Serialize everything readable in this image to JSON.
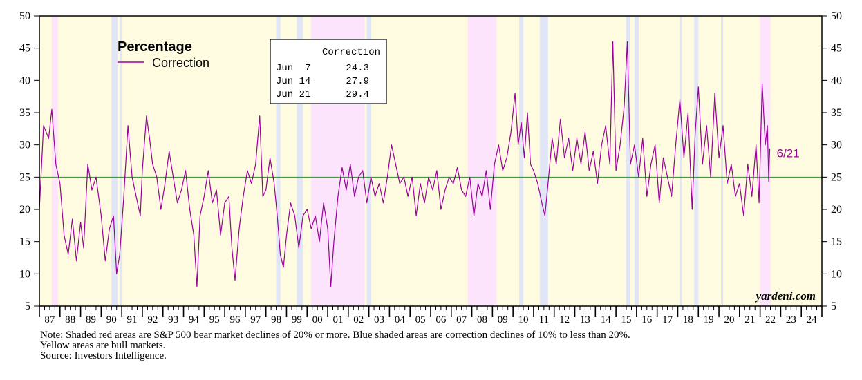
{
  "chart_data": {
    "type": "line",
    "legend": {
      "title": "Percentage",
      "series_label": "Correction",
      "placement": "top-left"
    },
    "series": [
      {
        "name": "Correction",
        "color": "#9a009a",
        "points": [
          [
            1987.0,
            20.0
          ],
          [
            1987.2,
            33.0
          ],
          [
            1987.45,
            31.0
          ],
          [
            1987.6,
            35.5
          ],
          [
            1987.8,
            27.0
          ],
          [
            1988.0,
            24.0
          ],
          [
            1988.2,
            16.0
          ],
          [
            1988.4,
            13.0
          ],
          [
            1988.6,
            18.5
          ],
          [
            1988.8,
            12.0
          ],
          [
            1989.0,
            18.0
          ],
          [
            1989.15,
            14.0
          ],
          [
            1989.35,
            27.0
          ],
          [
            1989.55,
            23.0
          ],
          [
            1989.75,
            25.0
          ],
          [
            1990.0,
            19.0
          ],
          [
            1990.2,
            12.0
          ],
          [
            1990.4,
            17.0
          ],
          [
            1990.6,
            19.0
          ],
          [
            1990.75,
            10.0
          ],
          [
            1990.9,
            13.0
          ],
          [
            1991.1,
            22.0
          ],
          [
            1991.3,
            33.0
          ],
          [
            1991.5,
            25.0
          ],
          [
            1991.7,
            22.0
          ],
          [
            1991.9,
            19.0
          ],
          [
            1992.0,
            26.0
          ],
          [
            1992.2,
            34.5
          ],
          [
            1992.35,
            31.0
          ],
          [
            1992.5,
            27.0
          ],
          [
            1992.7,
            25.0
          ],
          [
            1992.9,
            20.0
          ],
          [
            1993.1,
            24.0
          ],
          [
            1993.3,
            29.0
          ],
          [
            1993.5,
            25.0
          ],
          [
            1993.7,
            21.0
          ],
          [
            1993.9,
            23.0
          ],
          [
            1994.1,
            26.0
          ],
          [
            1994.3,
            20.0
          ],
          [
            1994.5,
            16.0
          ],
          [
            1994.65,
            8.0
          ],
          [
            1994.8,
            19.0
          ],
          [
            1995.0,
            22.0
          ],
          [
            1995.2,
            26.0
          ],
          [
            1995.4,
            21.0
          ],
          [
            1995.6,
            23.0
          ],
          [
            1995.8,
            16.0
          ],
          [
            1996.0,
            21.0
          ],
          [
            1996.2,
            22.0
          ],
          [
            1996.35,
            14.0
          ],
          [
            1996.5,
            9.0
          ],
          [
            1996.7,
            17.0
          ],
          [
            1996.9,
            22.0
          ],
          [
            1997.1,
            26.0
          ],
          [
            1997.3,
            24.0
          ],
          [
            1997.5,
            27.0
          ],
          [
            1997.7,
            34.5
          ],
          [
            1997.85,
            22.0
          ],
          [
            1998.0,
            23.0
          ],
          [
            1998.2,
            28.0
          ],
          [
            1998.4,
            24.0
          ],
          [
            1998.55,
            19.0
          ],
          [
            1998.7,
            13.0
          ],
          [
            1998.85,
            11.0
          ],
          [
            1999.0,
            16.0
          ],
          [
            1999.2,
            21.0
          ],
          [
            1999.4,
            19.0
          ],
          [
            1999.6,
            14.0
          ],
          [
            1999.8,
            19.0
          ],
          [
            2000.0,
            20.0
          ],
          [
            2000.2,
            17.0
          ],
          [
            2000.4,
            19.0
          ],
          [
            2000.6,
            15.0
          ],
          [
            2000.8,
            21.0
          ],
          [
            2001.0,
            17.0
          ],
          [
            2001.15,
            8.0
          ],
          [
            2001.3,
            15.0
          ],
          [
            2001.5,
            22.0
          ],
          [
            2001.7,
            26.5
          ],
          [
            2001.9,
            23.0
          ],
          [
            2002.1,
            27.0
          ],
          [
            2002.3,
            22.0
          ],
          [
            2002.5,
            25.0
          ],
          [
            2002.7,
            26.0
          ],
          [
            2002.9,
            21.0
          ],
          [
            2003.1,
            25.0
          ],
          [
            2003.3,
            22.0
          ],
          [
            2003.5,
            24.0
          ],
          [
            2003.7,
            21.0
          ],
          [
            2003.9,
            25.0
          ],
          [
            2004.1,
            30.0
          ],
          [
            2004.3,
            27.0
          ],
          [
            2004.5,
            24.0
          ],
          [
            2004.7,
            25.0
          ],
          [
            2004.9,
            22.0
          ],
          [
            2005.1,
            25.0
          ],
          [
            2005.3,
            19.0
          ],
          [
            2005.5,
            24.0
          ],
          [
            2005.7,
            21.0
          ],
          [
            2005.9,
            25.0
          ],
          [
            2006.1,
            23.0
          ],
          [
            2006.3,
            26.0
          ],
          [
            2006.5,
            20.0
          ],
          [
            2006.7,
            23.0
          ],
          [
            2006.9,
            25.0
          ],
          [
            2007.1,
            24.0
          ],
          [
            2007.3,
            26.5
          ],
          [
            2007.5,
            23.0
          ],
          [
            2007.7,
            22.0
          ],
          [
            2007.9,
            25.0
          ],
          [
            2008.1,
            19.0
          ],
          [
            2008.3,
            24.0
          ],
          [
            2008.5,
            22.0
          ],
          [
            2008.7,
            26.0
          ],
          [
            2008.9,
            20.0
          ],
          [
            2009.1,
            27.0
          ],
          [
            2009.3,
            30.0
          ],
          [
            2009.5,
            26.0
          ],
          [
            2009.7,
            28.0
          ],
          [
            2009.9,
            32.0
          ],
          [
            2010.1,
            38.0
          ],
          [
            2010.25,
            30.0
          ],
          [
            2010.4,
            33.5
          ],
          [
            2010.55,
            28.0
          ],
          [
            2010.7,
            35.0
          ],
          [
            2010.85,
            27.0
          ],
          [
            2011.0,
            26.0
          ],
          [
            2011.2,
            24.0
          ],
          [
            2011.4,
            21.0
          ],
          [
            2011.55,
            19.0
          ],
          [
            2011.7,
            24.0
          ],
          [
            2011.9,
            31.0
          ],
          [
            2012.1,
            27.0
          ],
          [
            2012.3,
            34.0
          ],
          [
            2012.5,
            28.0
          ],
          [
            2012.7,
            31.0
          ],
          [
            2012.9,
            26.0
          ],
          [
            2013.1,
            31.0
          ],
          [
            2013.3,
            27.0
          ],
          [
            2013.5,
            32.0
          ],
          [
            2013.7,
            26.0
          ],
          [
            2013.9,
            29.0
          ],
          [
            2014.1,
            24.0
          ],
          [
            2014.3,
            30.0
          ],
          [
            2014.5,
            33.0
          ],
          [
            2014.7,
            27.0
          ],
          [
            2014.85,
            46.0
          ],
          [
            2015.0,
            26.0
          ],
          [
            2015.2,
            30.0
          ],
          [
            2015.4,
            36.0
          ],
          [
            2015.55,
            46.0
          ],
          [
            2015.7,
            27.0
          ],
          [
            2015.9,
            30.0
          ],
          [
            2016.1,
            25.0
          ],
          [
            2016.3,
            31.0
          ],
          [
            2016.5,
            22.0
          ],
          [
            2016.7,
            27.0
          ],
          [
            2016.9,
            30.0
          ],
          [
            2017.1,
            21.0
          ],
          [
            2017.3,
            28.0
          ],
          [
            2017.5,
            25.0
          ],
          [
            2017.7,
            22.0
          ],
          [
            2017.9,
            30.0
          ],
          [
            2018.1,
            37.0
          ],
          [
            2018.3,
            28.0
          ],
          [
            2018.5,
            35.0
          ],
          [
            2018.7,
            20.0
          ],
          [
            2018.85,
            32.0
          ],
          [
            2019.0,
            39.0
          ],
          [
            2019.2,
            27.0
          ],
          [
            2019.4,
            33.0
          ],
          [
            2019.6,
            25.0
          ],
          [
            2019.8,
            38.0
          ],
          [
            2020.0,
            28.0
          ],
          [
            2020.2,
            33.0
          ],
          [
            2020.4,
            24.0
          ],
          [
            2020.6,
            27.0
          ],
          [
            2020.8,
            22.0
          ],
          [
            2021.0,
            24.0
          ],
          [
            2021.2,
            19.0
          ],
          [
            2021.4,
            27.0
          ],
          [
            2021.6,
            22.0
          ],
          [
            2021.8,
            30.0
          ],
          [
            2021.95,
            21.0
          ],
          [
            2022.1,
            39.5
          ],
          [
            2022.25,
            30.0
          ],
          [
            2022.35,
            33.0
          ],
          [
            2022.42,
            24.3
          ],
          [
            2022.45,
            27.9
          ],
          [
            2022.47,
            29.4
          ]
        ]
      }
    ],
    "x": {
      "min": 1987,
      "max": 2025,
      "tick_labels": [
        "87",
        "88",
        "89",
        "90",
        "91",
        "92",
        "93",
        "94",
        "95",
        "96",
        "97",
        "98",
        "99",
        "00",
        "01",
        "02",
        "03",
        "04",
        "05",
        "06",
        "07",
        "08",
        "09",
        "10",
        "11",
        "12",
        "13",
        "14",
        "15",
        "16",
        "17",
        "18",
        "19",
        "20",
        "21",
        "22",
        "23",
        "24"
      ]
    },
    "y": {
      "min": 5,
      "max": 50,
      "ticks": [
        5,
        10,
        15,
        20,
        25,
        30,
        35,
        40,
        45,
        50
      ],
      "axis_sides": "left and right"
    },
    "reference_line": {
      "y": 25,
      "color": "#2e8b2e"
    },
    "shaded_regions": {
      "bull": {
        "color": "#fffbe0",
        "range": [
          1987.0,
          2025.0
        ]
      },
      "bear": {
        "color": "#fce4fc",
        "ranges": [
          [
            1987.6,
            1987.9
          ],
          [
            2000.2,
            2002.8
          ],
          [
            2007.8,
            2009.2
          ],
          [
            2022.0,
            2022.5
          ]
        ]
      },
      "correction": {
        "color": "#e0e6f8",
        "ranges": [
          [
            1990.5,
            1990.8
          ],
          [
            1990.9,
            1991.0
          ],
          [
            1998.5,
            1998.7
          ],
          [
            1999.5,
            1999.8
          ],
          [
            2002.9,
            2003.1
          ],
          [
            2010.3,
            2010.5
          ],
          [
            2011.3,
            2011.7
          ],
          [
            2015.5,
            2015.7
          ],
          [
            2015.9,
            2016.1
          ],
          [
            2018.1,
            2018.2
          ],
          [
            2018.8,
            2019.0
          ],
          [
            2020.1,
            2020.2
          ]
        ]
      }
    },
    "last_point_label": "6/21",
    "table": {
      "header": "Correction",
      "rows": [
        {
          "date": "Jun  7",
          "value": "24.3"
        },
        {
          "date": "Jun 14",
          "value": "27.9"
        },
        {
          "date": "Jun 21",
          "value": "29.4"
        }
      ]
    },
    "watermark": "yardeni.com"
  },
  "notes": {
    "line1": "Note: Shaded red areas are S&P 500 bear market declines of 20% or more.  Blue shaded areas are correction declines of 10% to less than 20%.",
    "line2": "Yellow areas are bull markets.",
    "line3": "Source: Investors Intelligence."
  }
}
